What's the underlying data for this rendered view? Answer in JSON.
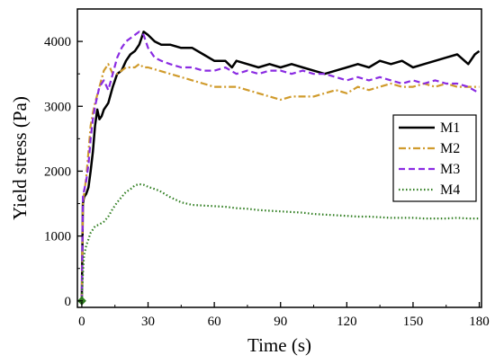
{
  "chart_data": {
    "type": "line",
    "xlabel": "Time (s)",
    "ylabel": "Yield stress (Pa)",
    "xlim": [
      -2,
      181
    ],
    "ylim": [
      -100,
      4500
    ],
    "xticks": [
      0,
      30,
      60,
      90,
      120,
      150,
      180
    ],
    "yticks": [
      0,
      1000,
      2000,
      3000,
      4000
    ],
    "legend_position": "right",
    "series": [
      {
        "name": "M1",
        "color": "#000000",
        "style": "solid",
        "x": [
          0,
          0.5,
          1,
          2,
          3,
          4,
          5,
          6,
          7,
          8,
          9,
          10,
          12,
          14,
          16,
          18,
          20,
          22,
          24,
          26,
          27,
          28,
          30,
          33,
          36,
          40,
          45,
          50,
          55,
          60,
          65,
          68,
          70,
          75,
          80,
          85,
          90,
          95,
          100,
          105,
          110,
          115,
          120,
          125,
          130,
          135,
          140,
          145,
          150,
          155,
          160,
          165,
          170,
          175,
          178,
          180
        ],
        "y": [
          0,
          1500,
          1600,
          1650,
          1750,
          2000,
          2300,
          2700,
          2950,
          2800,
          2850,
          2950,
          3050,
          3300,
          3500,
          3550,
          3700,
          3800,
          3850,
          3950,
          4050,
          4150,
          4100,
          4000,
          3950,
          3950,
          3900,
          3900,
          3800,
          3700,
          3700,
          3600,
          3700,
          3650,
          3600,
          3650,
          3600,
          3650,
          3600,
          3550,
          3500,
          3550,
          3600,
          3650,
          3600,
          3700,
          3650,
          3700,
          3600,
          3650,
          3700,
          3750,
          3800,
          3650,
          3800,
          3850
        ]
      },
      {
        "name": "M2",
        "color": "#d09b2c",
        "style": "dashdot",
        "x": [
          0,
          0.5,
          1,
          2,
          3,
          4,
          5,
          6,
          8,
          10,
          12,
          14,
          16,
          18,
          20,
          22,
          24,
          26,
          28,
          30,
          35,
          40,
          45,
          50,
          55,
          60,
          65,
          70,
          75,
          80,
          85,
          90,
          95,
          100,
          105,
          110,
          115,
          120,
          125,
          130,
          135,
          140,
          145,
          150,
          155,
          160,
          165,
          170,
          175,
          180
        ],
        "y": [
          0,
          1500,
          1650,
          1900,
          2300,
          2700,
          2900,
          3050,
          3300,
          3550,
          3650,
          3500,
          3500,
          3550,
          3600,
          3600,
          3600,
          3650,
          3600,
          3600,
          3550,
          3500,
          3450,
          3400,
          3350,
          3300,
          3300,
          3300,
          3250,
          3200,
          3150,
          3100,
          3150,
          3150,
          3150,
          3200,
          3250,
          3200,
          3300,
          3250,
          3300,
          3350,
          3300,
          3300,
          3350,
          3300,
          3350,
          3300,
          3300,
          3300
        ]
      },
      {
        "name": "M3",
        "color": "#8a2be2",
        "style": "dashed",
        "x": [
          0,
          0.5,
          1,
          2,
          3,
          4,
          5,
          6,
          8,
          10,
          12,
          14,
          16,
          18,
          20,
          22,
          24,
          26,
          28,
          30,
          33,
          36,
          40,
          45,
          50,
          55,
          60,
          65,
          70,
          75,
          80,
          85,
          90,
          95,
          100,
          105,
          110,
          115,
          120,
          125,
          130,
          135,
          140,
          145,
          150,
          155,
          160,
          165,
          170,
          175,
          180
        ],
        "y": [
          0,
          1600,
          1700,
          1850,
          2100,
          2500,
          2800,
          3000,
          3300,
          3400,
          3250,
          3500,
          3750,
          3900,
          4000,
          4050,
          4100,
          4150,
          4100,
          3900,
          3750,
          3700,
          3650,
          3600,
          3600,
          3550,
          3550,
          3600,
          3500,
          3550,
          3500,
          3550,
          3550,
          3500,
          3550,
          3500,
          3500,
          3450,
          3400,
          3450,
          3400,
          3450,
          3400,
          3350,
          3400,
          3350,
          3400,
          3350,
          3350,
          3300,
          3200
        ]
      },
      {
        "name": "M4",
        "color": "#2e7d1f",
        "style": "dotted",
        "x": [
          0,
          0.5,
          1,
          2,
          3,
          4,
          5,
          6,
          8,
          10,
          12,
          14,
          16,
          18,
          20,
          22,
          24,
          26,
          28,
          30,
          35,
          40,
          45,
          50,
          55,
          60,
          65,
          70,
          75,
          80,
          85,
          90,
          95,
          100,
          105,
          110,
          115,
          120,
          125,
          130,
          135,
          140,
          145,
          150,
          155,
          160,
          165,
          170,
          175,
          180
        ],
        "y": [
          0,
          400,
          700,
          850,
          950,
          1050,
          1100,
          1150,
          1180,
          1220,
          1300,
          1420,
          1520,
          1600,
          1680,
          1720,
          1780,
          1800,
          1790,
          1760,
          1700,
          1600,
          1520,
          1480,
          1470,
          1460,
          1450,
          1430,
          1420,
          1400,
          1390,
          1380,
          1370,
          1360,
          1340,
          1330,
          1320,
          1310,
          1300,
          1300,
          1290,
          1280,
          1280,
          1280,
          1270,
          1270,
          1270,
          1280,
          1270,
          1270
        ]
      }
    ]
  }
}
